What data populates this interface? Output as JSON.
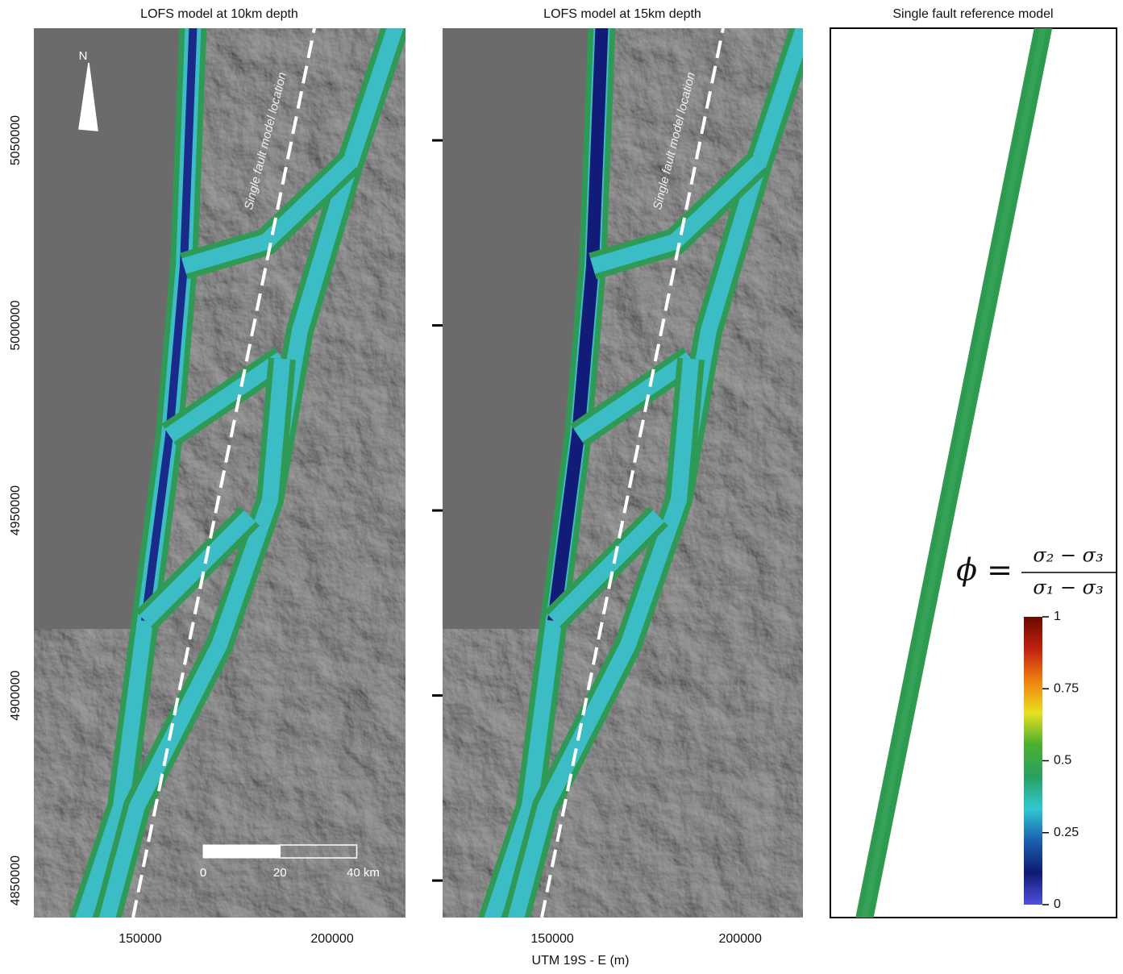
{
  "chart_data": [
    {
      "type": "map",
      "title": "LOFS model at 10km depth",
      "xlim": [
        122300,
        219100
      ],
      "ylim": [
        4840000,
        5080300
      ],
      "xticks": [
        150000,
        200000
      ],
      "yticks": [
        4850000,
        4900000,
        4950000,
        5000000,
        5050000
      ],
      "xlabel": "UTM 19S - E (m)",
      "annotation": "Single fault model location",
      "north_label": "N",
      "scale_bar": [
        0,
        20,
        {
          "value": 40,
          "label": "40 km"
        }
      ]
    },
    {
      "type": "map",
      "title": "LOFS model at 15km depth",
      "xlim": [
        120800,
        216700
      ],
      "ylim": [
        4840000,
        5080300
      ],
      "xticks": [
        150000,
        200000
      ],
      "yticks": [
        4850000,
        4900000,
        4950000,
        5000000,
        5050000
      ],
      "annotation": "Single fault model location"
    },
    {
      "type": "colorbar",
      "title": "Single fault reference model",
      "formula": {
        "lhs": "ϕ =",
        "numerator": "σ₂ − σ₃",
        "denominator": "σ₁ − σ₃"
      },
      "ylim": [
        0,
        1
      ],
      "yticks": [
        0,
        0.25,
        0.5,
        0.75,
        1
      ],
      "colormap": [
        "#5050e0",
        "#101a70",
        "#1a60b0",
        "#30c8d0",
        "#2aa060",
        "#48b030",
        "#e8e020",
        "#f08010",
        "#c02010",
        "#6a0a00"
      ]
    }
  ]
}
